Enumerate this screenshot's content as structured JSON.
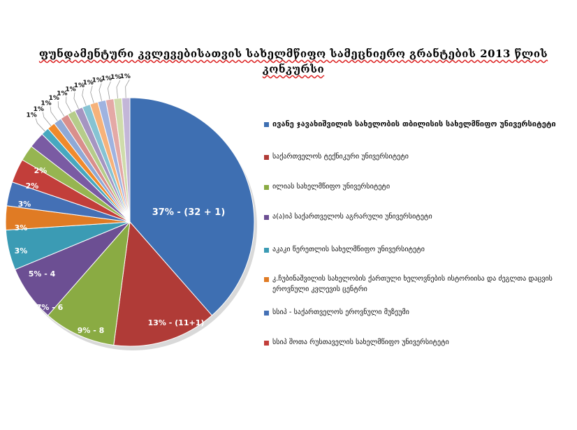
{
  "title_lines": [
    "ფუნდამენტური კვლევებისათვის სახელმწიფო სამეცნიერო   გრანტების 2013 წლის",
    "კონკურსი"
  ],
  "chart_data": {
    "type": "pie",
    "title": "ფუნდამენტური კვლევებისათვის სახელმწიფო სამეცნიერო გრანტების 2013 წლის კონკურსი",
    "slices": [
      {
        "label": "ივანე ჯავახიშვილის სახელობის თბილისის სახელმწიფო უნივერსიტეტი",
        "value": 37,
        "data_label": "37% - (32 + 1)",
        "color": "#3e6fb2"
      },
      {
        "label": "საქართველოს ტექნიკური უნივერსიტეტი",
        "value": 13,
        "data_label": "13% - (11+1)",
        "color": "#b03b37"
      },
      {
        "label": "ილიას სახელმწიფო უნივერსიტეტი",
        "value": 9,
        "data_label": "9% - 8",
        "color": "#8aab43"
      },
      {
        "label": "ა(ა)იპ საქართველოს აგრარული უნივერსიტეტი",
        "value": 7,
        "data_label": "7% - 6",
        "color": "#6c4f93"
      },
      {
        "label": "აკაკი წერეთლის სახელმწიფო უნივერსიტეტი",
        "value": 5,
        "data_label": "5% - 4",
        "color": "#3b9bb4"
      },
      {
        "label": "კ.ჩუბინაშვილის სახელობის ქართული ხელოვნების ისტორიისა და ძეგლთა დაცვის ეროვნული კვლევის ცენტრი",
        "value": 3,
        "data_label": "3%",
        "color": "#e07b24"
      },
      {
        "label": "სსიპ - საქართველოს ეროვნული მუზეუმი",
        "value": 3,
        "data_label": "3%",
        "color": "#4470b5"
      },
      {
        "label": "სსიპ შოთა რუსთაველის სახელმწიფო უნივერსიტეტი",
        "value": 3,
        "data_label": "3%",
        "color": "#c23e3a"
      },
      {
        "label": "",
        "value": 2,
        "data_label": "2%",
        "color": "#96b551"
      },
      {
        "label": "",
        "value": 2,
        "data_label": "2%",
        "color": "#7a5ba3"
      },
      {
        "label": "",
        "value": 1,
        "data_label": "1%",
        "color": "#47a8c0"
      },
      {
        "label": "",
        "value": 1,
        "data_label": "1%",
        "color": "#f08a2c"
      },
      {
        "label": "",
        "value": 1,
        "data_label": "1%",
        "color": "#8fa9d6"
      },
      {
        "label": "",
        "value": 1,
        "data_label": "1%",
        "color": "#d98f8c"
      },
      {
        "label": "",
        "value": 1,
        "data_label": "1%",
        "color": "#b6cc8a"
      },
      {
        "label": "",
        "value": 1,
        "data_label": "1%",
        "color": "#a595c1"
      },
      {
        "label": "",
        "value": 1,
        "data_label": "1%",
        "color": "#86c3d3"
      },
      {
        "label": "",
        "value": 1,
        "data_label": "1%",
        "color": "#f6b27a"
      },
      {
        "label": "",
        "value": 1,
        "data_label": "1%",
        "color": "#9fb3e0"
      },
      {
        "label": "",
        "value": 1,
        "data_label": "1%",
        "color": "#e4a9a6"
      },
      {
        "label": "",
        "value": 1,
        "data_label": "1%",
        "color": "#cfdcab"
      },
      {
        "label": "",
        "value": 1,
        "data_label": "1%",
        "color": "#c3b6d8"
      }
    ],
    "legend_position": "right"
  }
}
